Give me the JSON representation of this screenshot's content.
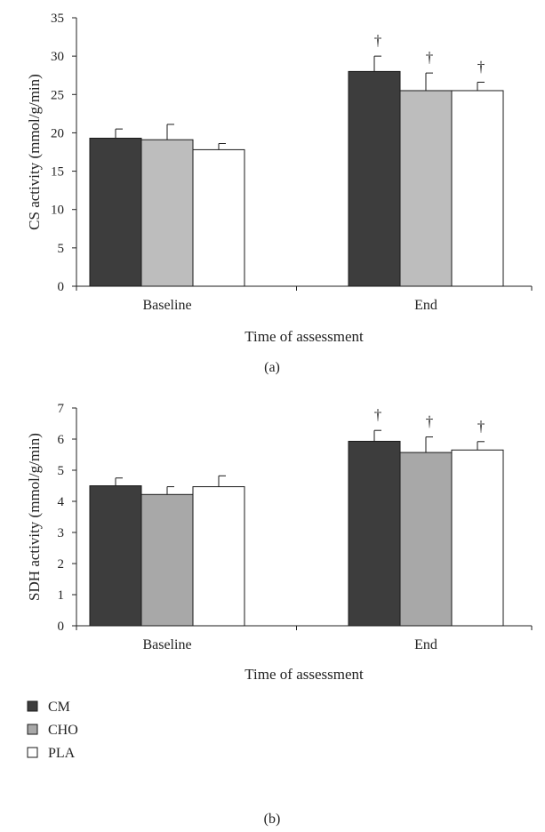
{
  "chart_data": [
    {
      "type": "bar",
      "panel_label": "(a)",
      "ylabel": "CS activity (mmol/g/min)",
      "xlabel": "Time of assessment",
      "categories": [
        "Baseline",
        "End"
      ],
      "ylim": [
        0,
        35
      ],
      "yticks": [
        0,
        5,
        10,
        15,
        20,
        25,
        30,
        35
      ],
      "grid": false,
      "series": [
        {
          "name": "CM",
          "values": [
            19.3,
            28.0
          ],
          "errors": [
            1.2,
            2.0
          ],
          "color": "#3d3d3d"
        },
        {
          "name": "CHO",
          "values": [
            19.1,
            25.5
          ],
          "errors": [
            2.0,
            2.3
          ],
          "color": "#bdbdbd"
        },
        {
          "name": "PLA",
          "values": [
            17.8,
            25.5
          ],
          "errors": [
            0.8,
            1.1
          ],
          "color": "#ffffff"
        }
      ],
      "annotations": [
        {
          "text": "†",
          "category": "End",
          "series": "CM"
        },
        {
          "text": "†",
          "category": "End",
          "series": "CHO"
        },
        {
          "text": "†",
          "category": "End",
          "series": "PLA"
        }
      ]
    },
    {
      "type": "bar",
      "panel_label": "(b)",
      "ylabel": "SDH activity (mmol/g/min)",
      "xlabel": "Time of assessment",
      "categories": [
        "Baseline",
        "End"
      ],
      "ylim": [
        0,
        7
      ],
      "yticks": [
        0,
        1,
        2,
        3,
        4,
        5,
        6,
        7
      ],
      "grid": false,
      "series": [
        {
          "name": "CM",
          "values": [
            4.5,
            5.93
          ],
          "errors": [
            0.25,
            0.35
          ],
          "color": "#3d3d3d"
        },
        {
          "name": "CHO",
          "values": [
            4.22,
            5.57
          ],
          "errors": [
            0.25,
            0.5
          ],
          "color": "#a8a8a8"
        },
        {
          "name": "PLA",
          "values": [
            4.47,
            5.65
          ],
          "errors": [
            0.35,
            0.27
          ],
          "color": "#ffffff"
        }
      ],
      "annotations": [
        {
          "text": "†",
          "category": "End",
          "series": "CM"
        },
        {
          "text": "†",
          "category": "End",
          "series": "CHO"
        },
        {
          "text": "†",
          "category": "End",
          "series": "PLA"
        }
      ]
    }
  ],
  "legend": {
    "placement": "below panel (b)",
    "items": [
      {
        "label": "CM",
        "color": "#3d3d3d"
      },
      {
        "label": "CHO",
        "color": "#a8a8a8"
      },
      {
        "label": "PLA",
        "color": "#ffffff"
      }
    ]
  }
}
